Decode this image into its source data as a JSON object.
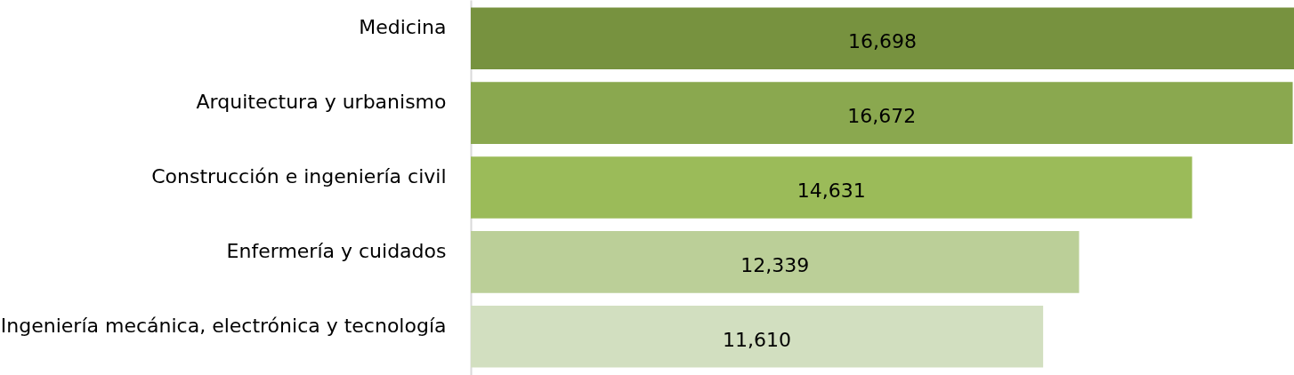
{
  "chart_data": {
    "type": "bar",
    "orientation": "horizontal",
    "value_labels": [
      "16,698",
      "16,672",
      "14,631",
      "12,339",
      "11,610"
    ],
    "categories": [
      "Medicina",
      "Arquitectura y urbanismo",
      "Construcción e ingeniería civil",
      "Enfermería y cuidados",
      "Ingeniería mecánica, electrónica y tecnología"
    ],
    "values": [
      16698,
      16672,
      14631,
      12339,
      11610
    ],
    "colors": [
      "#77923f",
      "#8aa84f",
      "#9bbb59",
      "#bbcf98",
      "#d2dfc0"
    ],
    "tick_labels": "y"
  }
}
